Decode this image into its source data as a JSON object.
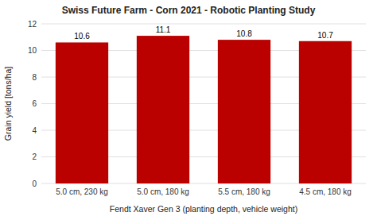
{
  "chart_data": {
    "type": "bar",
    "title": "Swiss Future Farm - Corn 2021 - Robotic Planting Study",
    "categories": [
      "5.0 cm, 230 kg",
      "5.0 cm, 180 kg",
      "5.5 cm, 180 kg",
      "4.5 cm, 180 kg"
    ],
    "values": [
      10.6,
      11.1,
      10.8,
      10.7
    ],
    "color": "#bb0000",
    "xlabel": "Fendt Xaver Gen 3 (planting depth, vehicle weight)",
    "ylabel": "Grain yield [tons/ha]",
    "ylim": [
      0,
      12
    ],
    "yticks": [
      0,
      2,
      4,
      6,
      8,
      10,
      12
    ],
    "grid": true,
    "data_labels": true
  }
}
